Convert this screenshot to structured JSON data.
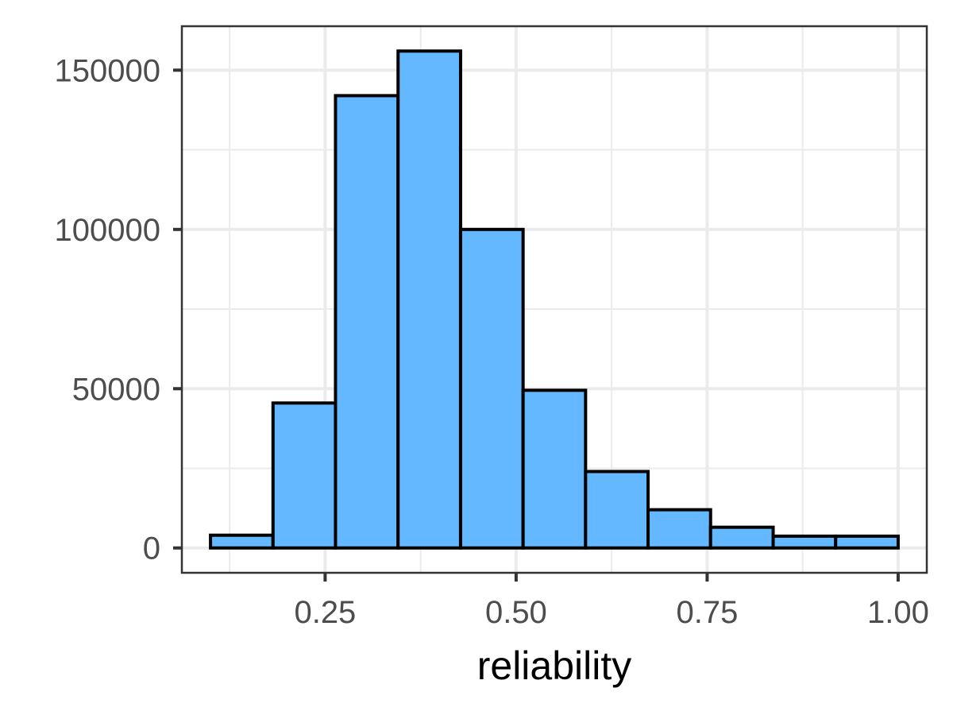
{
  "chart_data": {
    "type": "bar",
    "title": "",
    "xlabel": "reliability",
    "ylabel": "",
    "bin_edges": [
      0.1,
      0.1818,
      0.2636,
      0.3455,
      0.4273,
      0.5091,
      0.5909,
      0.6727,
      0.7545,
      0.8364,
      0.9182,
      1.0
    ],
    "values": [
      4000,
      45500,
      142000,
      156000,
      100000,
      49500,
      24000,
      12000,
      6500,
      3700,
      3700
    ],
    "xlim": [
      0.0625,
      1.0375
    ],
    "ylim": [
      -7800,
      163800
    ],
    "x_ticks": [
      0.25,
      0.5,
      0.75,
      1.0
    ],
    "x_tick_labels": [
      "0.25",
      "0.50",
      "0.75",
      "1.00"
    ],
    "y_ticks": [
      0,
      50000,
      100000,
      150000
    ],
    "y_tick_labels": [
      "0",
      "50000",
      "100000",
      "150000"
    ],
    "grid": true,
    "colors": {
      "bar_fill": "#63b8ff",
      "bar_outline": "#000000"
    }
  }
}
